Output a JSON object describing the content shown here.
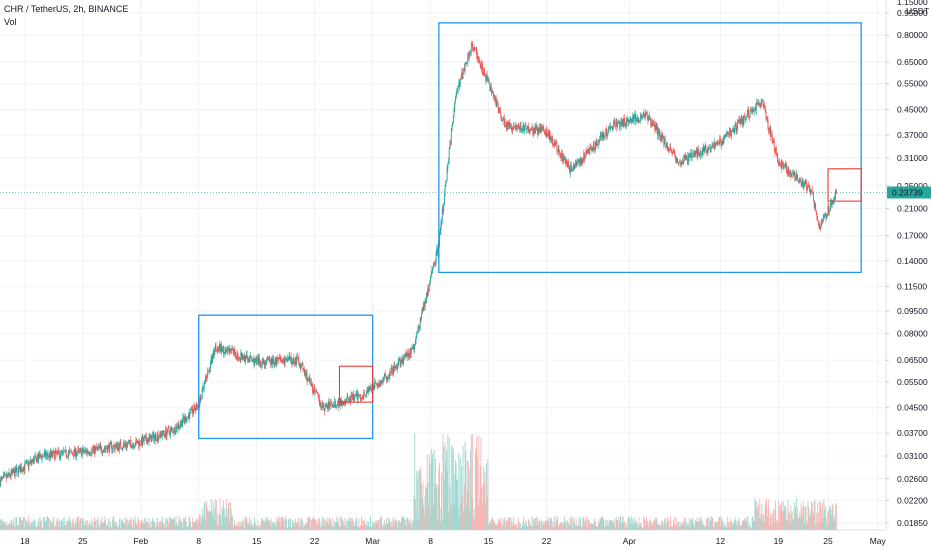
{
  "header": {
    "symbol_line": "CHR / TetherUS, 2h, BINANCE",
    "indicator": "Vol"
  },
  "colors": {
    "up": "#26a69a",
    "down": "#ef5350",
    "vol_up": "#9ed8d0",
    "vol_down": "#f7b6b4",
    "box_blue": "#2196f3",
    "box_red": "#e53935",
    "price_label_bg": "#26a69a",
    "grid": "#eef0f3"
  },
  "axis": {
    "currency": "USDT",
    "top_partial": "1.15000",
    "ticks": [
      "0.95000",
      "0.80000",
      "0.65000",
      "0.55000",
      "0.45000",
      "0.37000",
      "0.31000",
      "0.25000",
      "0.21000",
      "0.17000",
      "0.14000",
      "0.11500",
      "0.09500",
      "0.08000",
      "0.06500",
      "0.05500",
      "0.04500",
      "0.03700",
      "0.03100",
      "0.02600",
      "0.02200",
      "0.01850"
    ],
    "x_ticks": [
      "18",
      "25",
      "Feb",
      "8",
      "15",
      "22",
      "Mar",
      "8",
      "15",
      "22",
      "Apr",
      "12",
      "19",
      "25",
      "May"
    ]
  },
  "price_label": "0.23739",
  "chart_data": {
    "type": "candlestick",
    "title": "CHR / TetherUS, 2h, BINANCE",
    "y_scale": "log",
    "ylim": [
      0.0175,
      1.05
    ],
    "x_range": [
      "Jan 15",
      "May 2"
    ],
    "approx_close_path": [
      {
        "x": "Jan 15",
        "y": 0.0255
      },
      {
        "x": "Jan 20",
        "y": 0.031
      },
      {
        "x": "Jan 25",
        "y": 0.032
      },
      {
        "x": "Feb 1",
        "y": 0.0345
      },
      {
        "x": "Feb 5",
        "y": 0.038
      },
      {
        "x": "Feb 8",
        "y": 0.046
      },
      {
        "x": "Feb 10",
        "y": 0.072
      },
      {
        "x": "Feb 15",
        "y": 0.064
      },
      {
        "x": "Feb 20",
        "y": 0.065
      },
      {
        "x": "Feb 23",
        "y": 0.045
      },
      {
        "x": "Feb 28",
        "y": 0.05
      },
      {
        "x": "Mar 3",
        "y": 0.058
      },
      {
        "x": "Mar 6",
        "y": 0.072
      },
      {
        "x": "Mar 9",
        "y": 0.16
      },
      {
        "x": "Mar 11",
        "y": 0.5
      },
      {
        "x": "Mar 13",
        "y": 0.75
      },
      {
        "x": "Mar 17",
        "y": 0.4
      },
      {
        "x": "Mar 22",
        "y": 0.38
      },
      {
        "x": "Mar 25",
        "y": 0.28
      },
      {
        "x": "Mar 30",
        "y": 0.4
      },
      {
        "x": "Apr 3",
        "y": 0.43
      },
      {
        "x": "Apr 7",
        "y": 0.3
      },
      {
        "x": "Apr 12",
        "y": 0.35
      },
      {
        "x": "Apr 17",
        "y": 0.48
      },
      {
        "x": "Apr 19",
        "y": 0.3
      },
      {
        "x": "Apr 23",
        "y": 0.24
      },
      {
        "x": "Apr 24",
        "y": 0.18
      },
      {
        "x": "Apr 26",
        "y": 0.237
      }
    ],
    "annotations": [
      {
        "type": "box",
        "color": "blue",
        "x": [
          "Feb 8",
          "Mar 1"
        ],
        "y": [
          0.0355,
          0.092
        ]
      },
      {
        "type": "box",
        "color": "red",
        "x": [
          "Feb 25",
          "Mar 1"
        ],
        "y": [
          0.047,
          0.062
        ]
      },
      {
        "type": "box",
        "color": "blue",
        "x": [
          "Mar 9",
          "Apr 29"
        ],
        "y": [
          0.128,
          0.88
        ]
      },
      {
        "type": "box",
        "color": "red",
        "x": [
          "Apr 25",
          "Apr 29"
        ],
        "y": [
          0.222,
          0.285
        ]
      }
    ],
    "volume": {
      "label": "Vol",
      "series_shown": true
    }
  }
}
